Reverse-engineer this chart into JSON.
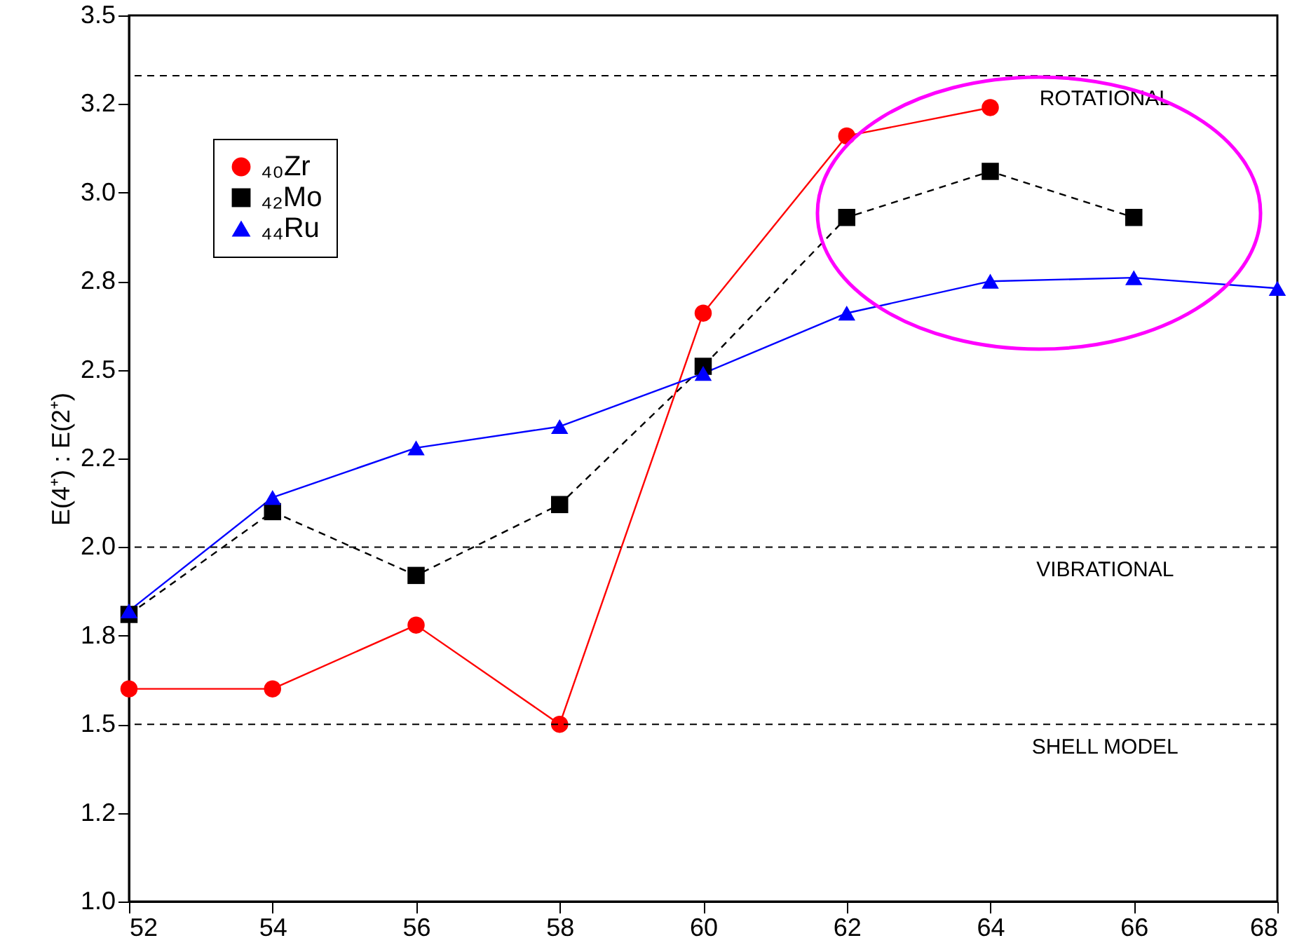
{
  "chart_data": {
    "type": "line",
    "ylabel": "E(4⁺) : E(2⁺)",
    "x": [
      52,
      54,
      56,
      58,
      60,
      62,
      64,
      66,
      68
    ],
    "series": [
      {
        "name": "₄₀Zr",
        "color": "#ff0000",
        "marker": "circle",
        "line_style": "solid",
        "values": [
          1.6,
          1.6,
          1.78,
          1.5,
          2.66,
          3.16,
          3.24,
          null,
          null
        ]
      },
      {
        "name": "₄₂Mo",
        "color": "#000000",
        "marker": "square",
        "line_style": "dashed",
        "values": [
          1.81,
          2.1,
          1.92,
          2.12,
          2.51,
          2.93,
          3.06,
          2.93,
          null
        ]
      },
      {
        "name": "₄₄Ru",
        "color": "#0000ff",
        "marker": "triangle",
        "line_style": "solid",
        "values": [
          1.82,
          2.14,
          2.28,
          2.34,
          2.49,
          2.66,
          2.75,
          2.76,
          2.73
        ]
      }
    ],
    "xlim": [
      52,
      68
    ],
    "xticks": [
      52,
      54,
      56,
      58,
      60,
      62,
      64,
      66,
      68
    ],
    "ylim": [
      1.0,
      3.5
    ],
    "yticks": [
      {
        "value": 1.0,
        "label": "1.0"
      },
      {
        "value": 1.25,
        "label": "1.2"
      },
      {
        "value": 1.5,
        "label": "1.5"
      },
      {
        "value": 1.75,
        "label": "1.8"
      },
      {
        "value": 2.0,
        "label": "2.0"
      },
      {
        "value": 2.25,
        "label": "2.2"
      },
      {
        "value": 2.5,
        "label": "2.5"
      },
      {
        "value": 2.75,
        "label": "2.8"
      },
      {
        "value": 3.0,
        "label": "3.0"
      },
      {
        "value": 3.25,
        "label": "3.2"
      },
      {
        "value": 3.5,
        "label": "3.5"
      }
    ],
    "ref_lines": [
      {
        "axis": "y",
        "value": 3.33,
        "label": "ROTATIONAL",
        "line_style": "dashed",
        "color": "#000000"
      },
      {
        "axis": "y",
        "value": 2.0,
        "label": "VIBRATIONAL",
        "line_style": "dashed",
        "color": "#000000"
      },
      {
        "axis": "y",
        "value": 1.5,
        "label": "SHELL MODEL",
        "line_style": "dashed",
        "color": "#000000"
      }
    ],
    "grid": false,
    "legend": "top left"
  }
}
